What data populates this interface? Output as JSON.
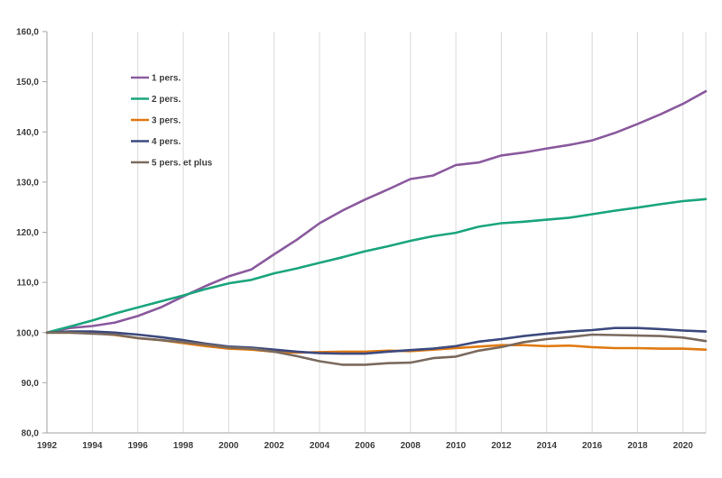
{
  "chart_data": {
    "type": "line",
    "title": "",
    "xlabel": "",
    "ylabel": "",
    "xlim": [
      1992,
      2021
    ],
    "ylim": [
      80,
      160
    ],
    "y_ticks": [
      "80,0",
      "90,0",
      "100,0",
      "110,0",
      "120,0",
      "130,0",
      "140,0",
      "150,0",
      "160,0"
    ],
    "x_ticks": [
      "1992",
      "1994",
      "1996",
      "1998",
      "2000",
      "2002",
      "2004",
      "2006",
      "2008",
      "2010",
      "2012",
      "2014",
      "2016",
      "2018",
      "2020"
    ],
    "grid": "vertical",
    "legend_position": "top-left",
    "x": [
      1992,
      1993,
      1994,
      1995,
      1996,
      1997,
      1998,
      1999,
      2000,
      2001,
      2002,
      2003,
      2004,
      2005,
      2006,
      2007,
      2008,
      2009,
      2010,
      2011,
      2012,
      2013,
      2014,
      2015,
      2016,
      2017,
      2018,
      2019,
      2020,
      2021
    ],
    "series": [
      {
        "name": "1 pers.",
        "color": "#8b5a9e",
        "values": [
          100.0,
          100.9,
          101.3,
          102.0,
          103.3,
          105.0,
          107.2,
          109.3,
          111.2,
          112.6,
          115.6,
          118.5,
          121.8,
          124.3,
          126.5,
          128.5,
          130.6,
          131.3,
          133.4,
          133.9,
          135.3,
          135.9,
          136.7,
          137.4,
          138.3,
          139.8,
          141.6,
          143.5,
          145.6,
          148.1
        ]
      },
      {
        "name": "2 pers.",
        "color": "#1ba57e",
        "values": [
          100.0,
          101.2,
          102.4,
          103.8,
          105.0,
          106.2,
          107.4,
          108.7,
          109.8,
          110.5,
          111.8,
          112.8,
          113.9,
          115.0,
          116.2,
          117.2,
          118.3,
          119.2,
          119.9,
          121.1,
          121.8,
          122.1,
          122.5,
          122.9,
          123.6,
          124.3,
          124.9,
          125.6,
          126.2,
          126.6
        ]
      },
      {
        "name": "3 pers.",
        "color": "#e07b14",
        "values": [
          100.0,
          100.0,
          99.9,
          99.5,
          98.9,
          98.5,
          97.9,
          97.3,
          96.8,
          96.6,
          96.2,
          96.0,
          96.1,
          96.2,
          96.2,
          96.4,
          96.3,
          96.6,
          96.9,
          97.2,
          97.5,
          97.5,
          97.3,
          97.4,
          97.1,
          96.9,
          96.9,
          96.8,
          96.8,
          96.6
        ]
      },
      {
        "name": "4 pers.",
        "color": "#3d4a7e",
        "values": [
          100.0,
          100.2,
          100.2,
          100.0,
          99.6,
          99.1,
          98.5,
          97.8,
          97.2,
          97.0,
          96.6,
          96.2,
          95.9,
          95.8,
          95.8,
          96.2,
          96.5,
          96.8,
          97.3,
          98.2,
          98.7,
          99.3,
          99.8,
          100.2,
          100.5,
          100.9,
          100.9,
          100.7,
          100.4,
          100.2
        ]
      },
      {
        "name": "5 pers. et plus",
        "color": "#7a6a5e",
        "values": [
          100.0,
          100.0,
          99.8,
          99.6,
          98.9,
          98.5,
          98.1,
          97.6,
          97.0,
          96.8,
          96.2,
          95.3,
          94.3,
          93.6,
          93.6,
          93.9,
          94.0,
          94.9,
          95.2,
          96.4,
          97.1,
          98.1,
          98.7,
          99.1,
          99.6,
          99.5,
          99.4,
          99.3,
          99.0,
          98.3
        ]
      }
    ]
  }
}
